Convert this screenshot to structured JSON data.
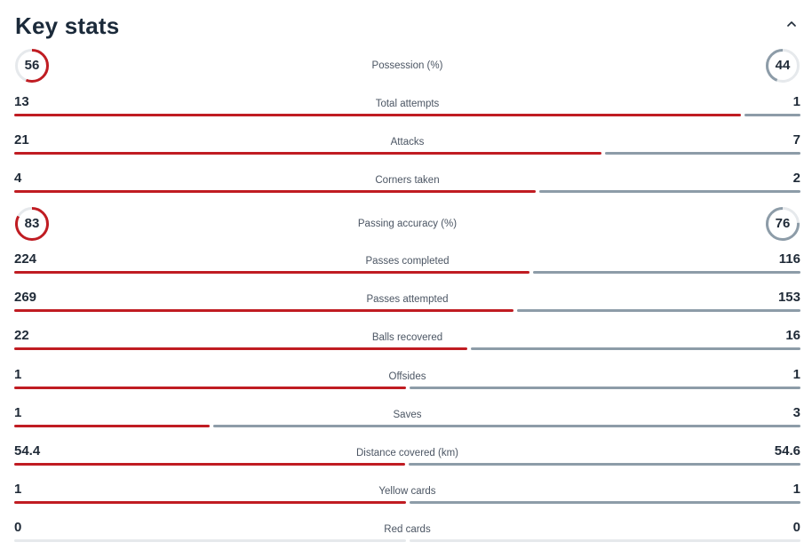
{
  "header": {
    "title": "Key stats"
  },
  "colors": {
    "home": "#c01c22",
    "away": "#8d9ca8",
    "empty": "#e6e9ec",
    "ring_bg": "#e6e9ec"
  },
  "percent_stats": [
    {
      "label": "Possession (%)",
      "home": "56",
      "away": "44"
    },
    {
      "label": "Passing accuracy (%)",
      "home": "83",
      "away": "76"
    }
  ],
  "stats": [
    {
      "label": "Total attempts",
      "home": "13",
      "away": "1"
    },
    {
      "label": "Attacks",
      "home": "21",
      "away": "7"
    },
    {
      "label": "Corners taken",
      "home": "4",
      "away": "2"
    },
    {
      "label": "Passes completed",
      "home": "224",
      "away": "116"
    },
    {
      "label": "Passes attempted",
      "home": "269",
      "away": "153"
    },
    {
      "label": "Balls recovered",
      "home": "22",
      "away": "16"
    },
    {
      "label": "Offsides",
      "home": "1",
      "away": "1"
    },
    {
      "label": "Saves",
      "home": "1",
      "away": "3"
    },
    {
      "label": "Distance covered (km)",
      "home": "54.4",
      "away": "54.6"
    },
    {
      "label": "Yellow cards",
      "home": "1",
      "away": "1"
    },
    {
      "label": "Red cards",
      "home": "0",
      "away": "0"
    }
  ],
  "icons": {
    "collapse": "chevron-up-icon"
  }
}
